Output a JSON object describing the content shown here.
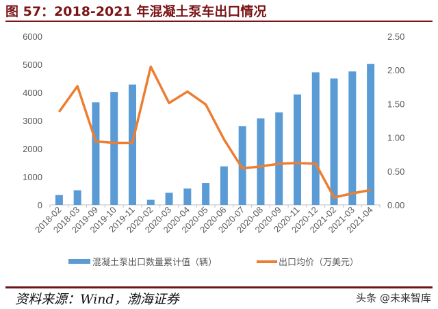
{
  "title": "图 57：2018-2021 年混凝土泵车出口情况",
  "source": "资料来源：Wind，渤海证券",
  "watermark": "头条 @未来智库",
  "colors": {
    "bar": "#5b9bd5",
    "line": "#ed7d31",
    "title": "#7b1416"
  },
  "chart_data": {
    "type": "bar+line",
    "categories": [
      "2018-02",
      "2018-03",
      "2019-09",
      "2019-10",
      "2019-11",
      "2020-02",
      "2020-03",
      "2020-04",
      "2020-05",
      "2020-06",
      "2020-07",
      "2020-08",
      "2020-09",
      "2020-11",
      "2020-12",
      "2021-02",
      "2021-03",
      "2021-04"
    ],
    "series": [
      {
        "name": "混凝土泵出口数量累计值（辆）",
        "type": "bar",
        "axis": "left",
        "values": [
          350,
          520,
          3650,
          4020,
          4280,
          180,
          430,
          580,
          780,
          1370,
          2800,
          3080,
          3290,
          3930,
          4720,
          4500,
          4750,
          5020
        ]
      },
      {
        "name": "出口均价（万美元）",
        "type": "line",
        "axis": "right",
        "values": [
          1.38,
          1.76,
          0.94,
          0.92,
          0.92,
          2.05,
          1.51,
          1.68,
          1.49,
          0.97,
          0.54,
          0.57,
          0.61,
          0.62,
          0.61,
          0.11,
          0.17,
          0.22
        ]
      }
    ],
    "y_left": {
      "range": [
        0,
        6000
      ],
      "ticks": [
        "0",
        "1000",
        "2000",
        "3000",
        "4000",
        "5000",
        "6000"
      ]
    },
    "y_right": {
      "range": [
        0,
        2.5
      ],
      "ticks": [
        "0.00",
        "0.50",
        "1.00",
        "1.50",
        "2.00",
        "2.50"
      ]
    },
    "legend_position": "bottom"
  }
}
